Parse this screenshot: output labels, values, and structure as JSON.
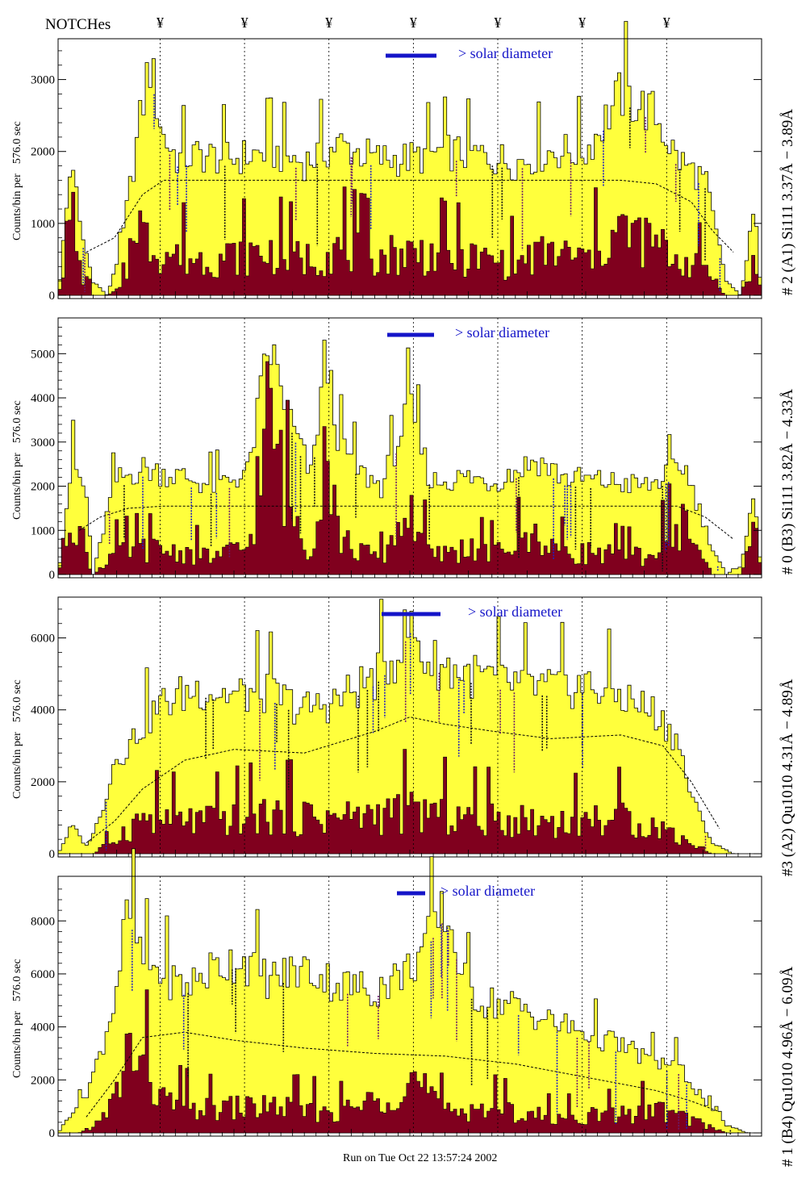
{
  "notch_header": {
    "title": "NOTCHes",
    "marker": "¥",
    "positions": [
      0.145,
      0.265,
      0.385,
      0.505,
      0.625,
      0.745,
      0.865
    ]
  },
  "footer": {
    "run_text": "Run on Tue Oct 22 13:57:24 2002"
  },
  "colors": {
    "fill_yellow": "#ffff3c",
    "fill_maroon": "#80001e",
    "legend_blue": "#1414c8",
    "annotation_blue": "#2020c0",
    "annotation_purple": "#6a1a6a"
  },
  "chart_data": [
    {
      "type": "area",
      "ylabel": "Counts/bin per",
      "ylabel_unit": "576.0 sec",
      "right_label": "# 2 (A1) Si111  3.37Å − 3.89Å",
      "legend_text": "> solar diameter",
      "ylim": [
        0,
        3500
      ],
      "yticks": [
        0,
        1000,
        2000,
        3000
      ],
      "series": [
        {
          "name": "total",
          "color": "#ffff3c",
          "x": [
            0,
            0.02,
            0.03,
            0.05,
            0.07,
            0.09,
            0.11,
            0.13,
            0.15,
            0.17,
            0.2,
            0.25,
            0.3,
            0.35,
            0.4,
            0.45,
            0.5,
            0.55,
            0.6,
            0.65,
            0.7,
            0.75,
            0.8,
            0.85,
            0.88,
            0.92,
            0.95,
            0.97,
            0.99,
            1
          ],
          "y": [
            0,
            2000,
            1000,
            200,
            0,
            700,
            2000,
            3250,
            2200,
            1900,
            1950,
            1900,
            2000,
            1850,
            2100,
            1900,
            1900,
            2000,
            1950,
            1850,
            2000,
            2000,
            2800,
            2500,
            1900,
            1600,
            200,
            0,
            1200,
            0
          ]
        },
        {
          "name": "detail",
          "color": "#80001e",
          "x": [
            0,
            0.02,
            0.03,
            0.05,
            0.07,
            0.09,
            0.1,
            0.11,
            0.12,
            0.15,
            0.2,
            0.25,
            0.3,
            0.35,
            0.4,
            0.45,
            0.5,
            0.55,
            0.6,
            0.65,
            0.7,
            0.75,
            0.8,
            0.85,
            0.88,
            0.92,
            0.95,
            0.97,
            0.99,
            1
          ],
          "y": [
            0,
            1200,
            400,
            0,
            0,
            100,
            400,
            1500,
            800,
            600,
            500,
            550,
            600,
            500,
            650,
            550,
            600,
            550,
            500,
            450,
            600,
            500,
            900,
            700,
            500,
            400,
            0,
            0,
            500,
            0
          ]
        },
        {
          "name": "average",
          "dashed": true,
          "x": [
            0.04,
            0.08,
            0.12,
            0.15,
            0.2,
            0.3,
            0.4,
            0.5,
            0.6,
            0.7,
            0.8,
            0.85,
            0.9,
            0.93,
            0.96
          ],
          "y": [
            600,
            800,
            1400,
            1600,
            1600,
            1600,
            1600,
            1600,
            1600,
            1600,
            1600,
            1550,
            1300,
            900,
            600
          ]
        }
      ]
    },
    {
      "type": "area",
      "ylabel": "Counts/bin per",
      "ylabel_unit": "576.0 sec",
      "right_label": "# 0 (B3) Si111  3.82Å − 4.33Å",
      "legend_text": "> solar diameter",
      "ylim": [
        0,
        5700
      ],
      "yticks": [
        0,
        1000,
        2000,
        3000,
        4000,
        5000
      ],
      "series": [
        {
          "name": "total",
          "color": "#ffff3c",
          "x": [
            0,
            0.02,
            0.04,
            0.05,
            0.08,
            0.12,
            0.18,
            0.22,
            0.27,
            0.3,
            0.33,
            0.36,
            0.38,
            0.4,
            0.43,
            0.46,
            0.5,
            0.53,
            0.58,
            0.62,
            0.68,
            0.72,
            0.78,
            0.84,
            0.89,
            0.93,
            0.95,
            0.97,
            0.99,
            1
          ],
          "y": [
            0,
            2600,
            1800,
            0,
            2100,
            2400,
            2200,
            2000,
            2300,
            5200,
            3500,
            2200,
            5000,
            3000,
            2300,
            2000,
            3800,
            2100,
            2200,
            2100,
            2600,
            2200,
            2100,
            2000,
            2500,
            600,
            0,
            200,
            1800,
            0
          ]
        },
        {
          "name": "detail",
          "color": "#80001e",
          "x": [
            0,
            0.02,
            0.04,
            0.05,
            0.08,
            0.12,
            0.18,
            0.22,
            0.27,
            0.3,
            0.33,
            0.36,
            0.38,
            0.4,
            0.43,
            0.46,
            0.5,
            0.53,
            0.58,
            0.62,
            0.68,
            0.72,
            0.78,
            0.84,
            0.89,
            0.93,
            0.95,
            0.97,
            0.99,
            1
          ],
          "y": [
            0,
            1600,
            500,
            0,
            500,
            600,
            500,
            400,
            600,
            3600,
            1500,
            500,
            3400,
            800,
            500,
            400,
            1500,
            400,
            600,
            500,
            900,
            500,
            500,
            400,
            1200,
            0,
            0,
            0,
            1500,
            0
          ]
        },
        {
          "name": "average",
          "dashed": true,
          "x": [
            0.03,
            0.06,
            0.1,
            0.15,
            0.3,
            0.45,
            0.6,
            0.75,
            0.88,
            0.92,
            0.96
          ],
          "y": [
            1000,
            1300,
            1500,
            1550,
            1550,
            1550,
            1550,
            1550,
            1550,
            1300,
            800
          ]
        }
      ]
    },
    {
      "type": "area",
      "ylabel": "Counts/bin per",
      "ylabel_unit": "576.0 sec",
      "right_label": "#3 (A2) Qu1010  4.31Å − 4.89Å",
      "legend_text": "> solar diameter",
      "ylim": [
        0,
        7000
      ],
      "yticks": [
        0,
        2000,
        4000,
        6000
      ],
      "series": [
        {
          "name": "total",
          "color": "#ffff3c",
          "x": [
            0,
            0.02,
            0.04,
            0.06,
            0.08,
            0.1,
            0.12,
            0.15,
            0.2,
            0.25,
            0.3,
            0.35,
            0.4,
            0.45,
            0.48,
            0.5,
            0.52,
            0.55,
            0.6,
            0.65,
            0.7,
            0.75,
            0.8,
            0.85,
            0.88,
            0.9,
            0.93,
            0.96,
            1
          ],
          "y": [
            0,
            800,
            200,
            1000,
            2600,
            3000,
            3600,
            4200,
            4600,
            4400,
            4500,
            4000,
            4300,
            4900,
            5500,
            6400,
            5400,
            5200,
            4900,
            4700,
            4600,
            4700,
            4400,
            3900,
            3200,
            1600,
            300,
            0,
            0
          ]
        },
        {
          "name": "detail",
          "color": "#80001e",
          "x": [
            0,
            0.05,
            0.08,
            0.12,
            0.2,
            0.3,
            0.4,
            0.5,
            0.6,
            0.7,
            0.8,
            0.86,
            0.9,
            0.93,
            1
          ],
          "y": [
            0,
            0,
            400,
            1000,
            900,
            1100,
            1000,
            1200,
            1000,
            900,
            1000,
            700,
            300,
            0,
            0
          ]
        },
        {
          "name": "average",
          "dashed": true,
          "x": [
            0.04,
            0.08,
            0.12,
            0.18,
            0.25,
            0.35,
            0.45,
            0.5,
            0.55,
            0.62,
            0.7,
            0.8,
            0.86,
            0.9,
            0.94
          ],
          "y": [
            300,
            900,
            1800,
            2600,
            2900,
            2800,
            3400,
            3800,
            3600,
            3400,
            3200,
            3300,
            3000,
            2000,
            700
          ]
        }
      ]
    },
    {
      "type": "area",
      "ylabel": "Counts/bin per",
      "ylabel_unit": "576.0 sec",
      "right_label": "# 1 (B4) Qu1010 4.96Å − 6.09Å",
      "legend_text": "> solar diameter",
      "ylim": [
        0,
        9500
      ],
      "yticks": [
        0,
        2000,
        4000,
        6000,
        8000
      ],
      "series": [
        {
          "name": "total",
          "color": "#ffff3c",
          "x": [
            0,
            0.02,
            0.04,
            0.06,
            0.08,
            0.1,
            0.12,
            0.15,
            0.18,
            0.22,
            0.26,
            0.3,
            0.35,
            0.4,
            0.45,
            0.5,
            0.55,
            0.58,
            0.6,
            0.65,
            0.7,
            0.75,
            0.8,
            0.85,
            0.88,
            0.92,
            0.95,
            0.98,
            1
          ],
          "y": [
            0,
            800,
            1500,
            3000,
            5000,
            8500,
            6500,
            6000,
            5500,
            6200,
            6600,
            5800,
            6200,
            5600,
            5400,
            6200,
            8400,
            5600,
            5000,
            4800,
            4200,
            3800,
            3300,
            2700,
            2600,
            1200,
            300,
            0,
            0
          ]
        },
        {
          "name": "detail",
          "color": "#80001e",
          "x": [
            0,
            0.03,
            0.06,
            0.08,
            0.1,
            0.12,
            0.15,
            0.2,
            0.3,
            0.4,
            0.45,
            0.5,
            0.55,
            0.6,
            0.7,
            0.8,
            0.85,
            0.9,
            0.95,
            1
          ],
          "y": [
            0,
            0,
            400,
            1200,
            3200,
            2500,
            1200,
            900,
            1000,
            800,
            1200,
            2200,
            800,
            1000,
            600,
            700,
            900,
            500,
            0,
            0
          ]
        },
        {
          "name": "average",
          "dashed": true,
          "x": [
            0.04,
            0.08,
            0.12,
            0.18,
            0.25,
            0.35,
            0.45,
            0.55,
            0.65,
            0.75,
            0.85,
            0.9,
            0.94
          ],
          "y": [
            600,
            2000,
            3600,
            3800,
            3500,
            3200,
            3000,
            2900,
            2600,
            2100,
            1600,
            1200,
            800
          ]
        }
      ]
    }
  ]
}
